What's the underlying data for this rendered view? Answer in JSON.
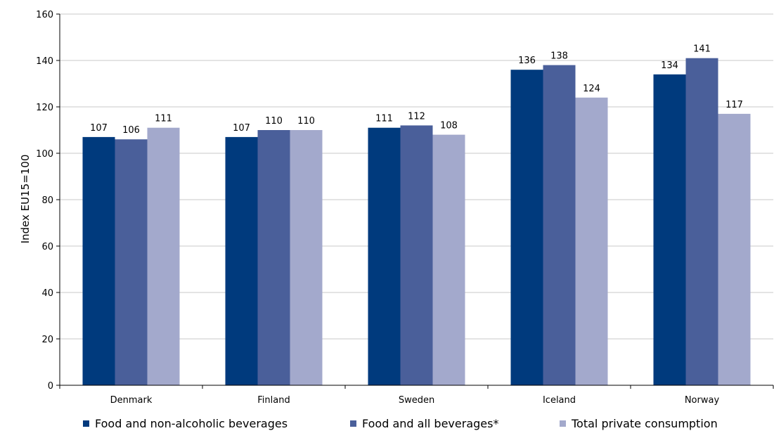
{
  "chart_data": {
    "type": "bar",
    "ylabel": "Index EU15=100",
    "ylim": [
      0,
      160
    ],
    "yticks": [
      0,
      20,
      40,
      60,
      80,
      100,
      120,
      140,
      160
    ],
    "categories": [
      "Denmark",
      "Finland",
      "Sweden",
      "Iceland",
      "Norway"
    ],
    "series": [
      {
        "name": "Food and non-alcoholic beverages",
        "color": "#003a7d",
        "values": [
          107,
          107,
          111,
          136,
          134
        ]
      },
      {
        "name": "Food and all beverages*",
        "color": "#4a5f9a",
        "values": [
          106,
          110,
          112,
          138,
          141
        ]
      },
      {
        "name": "Total private consumption",
        "color": "#a3a9cc",
        "values": [
          111,
          110,
          108,
          124,
          117
        ]
      }
    ],
    "gridlines": true,
    "legend_position": "bottom"
  }
}
